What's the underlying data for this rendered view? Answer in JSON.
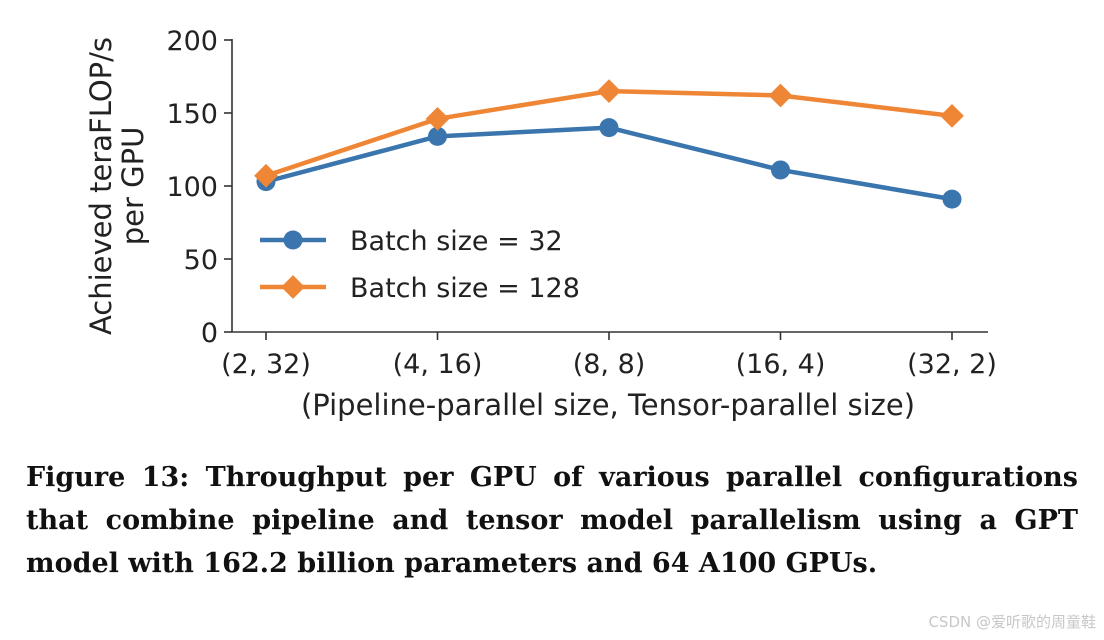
{
  "chart_data": {
    "type": "line",
    "categories": [
      "(2, 32)",
      "(4, 16)",
      "(8, 8)",
      "(16, 4)",
      "(32, 2)"
    ],
    "series": [
      {
        "name": "Batch size = 32",
        "values": [
          103,
          134,
          140,
          111,
          91
        ],
        "color": "#3a75ae",
        "marker": "circle"
      },
      {
        "name": "Batch size = 128",
        "values": [
          107,
          146,
          165,
          162,
          148
        ],
        "color": "#ef8636",
        "marker": "diamond"
      }
    ],
    "xlabel": "(Pipeline-parallel size, Tensor-parallel size)",
    "ylabel_lines": [
      "Achieved teraFLOP/s",
      "per GPU"
    ],
    "ylim": [
      0,
      200
    ],
    "yticks": [
      0,
      50,
      100,
      150,
      200
    ],
    "grid": false,
    "legend_position": "lower-left"
  },
  "caption": "Figure 13: Throughput per GPU of various parallel configurations that combine pipeline and tensor model parallelism using a GPT model with 162.2 billion parameters and 64 A100 GPUs.",
  "watermark": "CSDN @爱听歌的周童鞋"
}
